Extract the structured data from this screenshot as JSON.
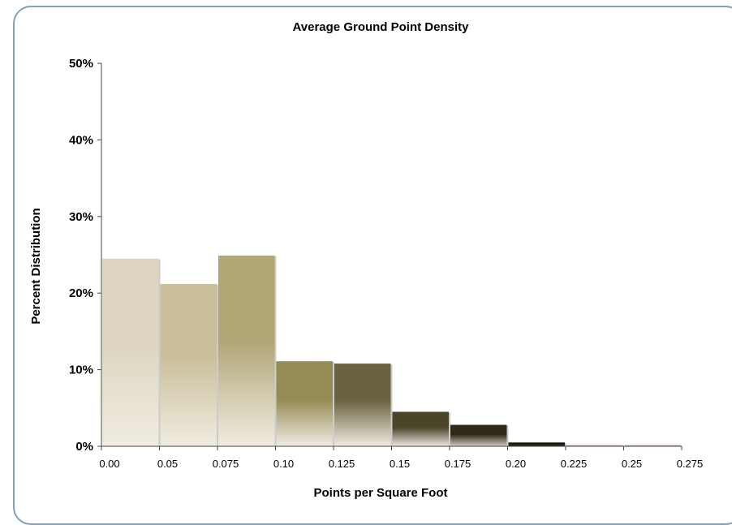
{
  "chart_data": {
    "type": "bar",
    "title": "Average Ground Point Density",
    "xlabel": "Points per Square Foot",
    "ylabel": "Percent Distribution",
    "x_tick_labels": [
      "0.00",
      "0.05",
      "0.075",
      "0.10",
      "0.125",
      "0.15",
      "0.175",
      "0.20",
      "0.225",
      "0.25",
      "0.275"
    ],
    "y_tick_labels": [
      "0%",
      "10%",
      "20%",
      "30%",
      "40%",
      "50%"
    ],
    "ylim": [
      0,
      50
    ],
    "ytick_step": 10,
    "grid": false,
    "legend": false,
    "bins": [
      "0.00-0.05",
      "0.05-0.075",
      "0.075-0.10",
      "0.10-0.125",
      "0.125-0.15",
      "0.15-0.175",
      "0.175-0.20",
      "0.20-0.225",
      "0.225-0.25",
      "0.25-0.275"
    ],
    "values": [
      24.5,
      21.2,
      24.9,
      11.1,
      10.8,
      4.5,
      2.8,
      0.5,
      0.15,
      0.15
    ],
    "bar_colors": [
      [
        "#ddd5c0",
        "#f0ece1"
      ],
      [
        "#c9bf9a",
        "#f0ece1"
      ],
      [
        "#b1a676",
        "#f0ece1"
      ],
      [
        "#958b55",
        "#f0ece1"
      ],
      [
        "#6b6340",
        "#f0ece1"
      ],
      [
        "#4a4428",
        "#f2e7e7"
      ],
      [
        "#2e2a17",
        "#d6cfc3"
      ],
      [
        "#1e1c10",
        "#3a3722"
      ],
      [
        "#cc9aa6",
        "#e8cfd5"
      ],
      [
        "#cc9aa6",
        "#e8cfd5"
      ]
    ],
    "axis_color": "#444444",
    "frame_color": "#7fa0b7"
  }
}
